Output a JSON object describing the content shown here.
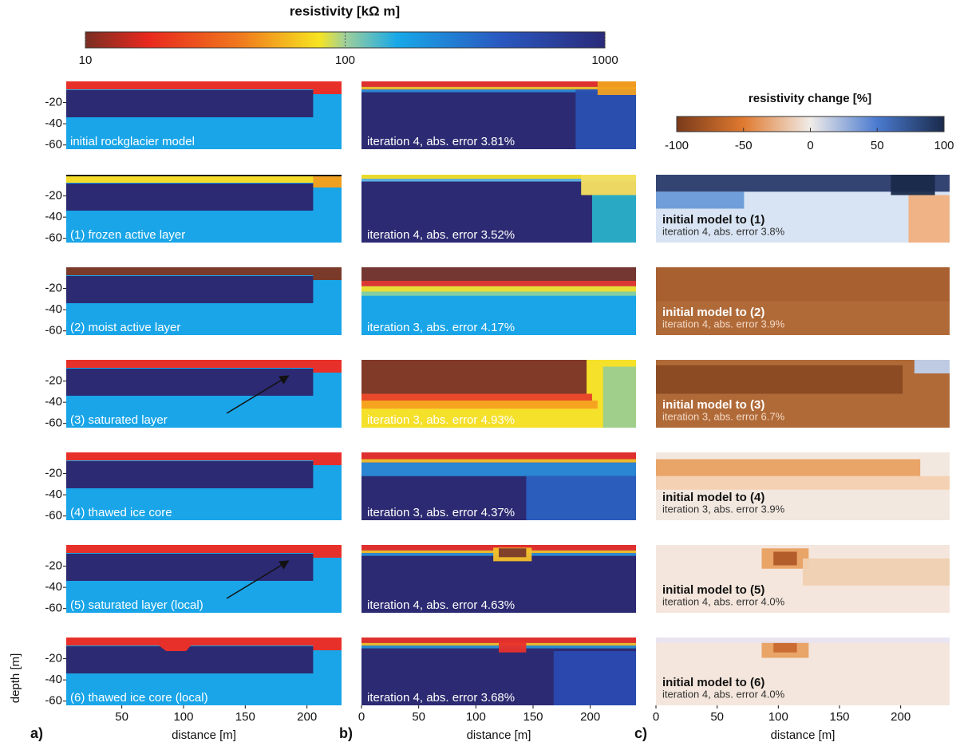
{
  "colorbar_resistivity": {
    "title": "resistivity [kΩ m]",
    "ticks": [
      10,
      100,
      1000
    ],
    "lim": [
      10,
      1000
    ],
    "log": true
  },
  "colorbar_change": {
    "title": "resistivity change [%]",
    "ticks": [
      -100,
      -50,
      0,
      50,
      100
    ],
    "lim": [
      -100,
      100
    ]
  },
  "depth_axis": {
    "label": "depth [m]",
    "ticks": [
      -20,
      -40,
      -60
    ],
    "lim": [
      0,
      -64
    ]
  },
  "distance_axis_a": {
    "label": "distance [m]",
    "ticks": [
      50,
      100,
      150,
      200
    ],
    "lim": [
      5,
      228
    ]
  },
  "distance_axis_b": {
    "label": "distance [m]",
    "ticks": [
      0,
      50,
      100,
      150,
      200
    ],
    "lim": [
      0,
      240
    ]
  },
  "distance_axis_c": {
    "label": "distance [m]",
    "ticks": [
      0,
      50,
      100,
      150,
      200
    ],
    "lim": [
      0,
      240
    ]
  },
  "panel_letters": [
    "a)",
    "b)",
    "c)"
  ],
  "rows": [
    {
      "model": "initial rockglacier model",
      "inversion": "iteration 4, abs. error 3.81%"
    },
    {
      "model": "(1) frozen active layer",
      "inversion": "iteration 4, abs. error 3.52%",
      "change_title": "initial model to (1)",
      "change_subtitle": "iteration 4, abs. error 3.8%"
    },
    {
      "model": "(2) moist active layer",
      "inversion": "iteration 3, abs. error 4.17%",
      "change_title": "initial model to (2)",
      "change_subtitle": "iteration 4, abs. error 3.9%"
    },
    {
      "model": "(3) saturated layer",
      "inversion": "iteration 3, abs. error 4.93%",
      "change_title": "initial model to (3)",
      "change_subtitle": "iteration 3, abs. error 6.7%"
    },
    {
      "model": "(4) thawed ice core",
      "inversion": "iteration 3, abs. error 4.37%",
      "change_title": "initial model to (4)",
      "change_subtitle": "iteration 3, abs. error 3.9%"
    },
    {
      "model": "(5) saturated layer (local)",
      "inversion": "iteration 4, abs. error 4.63%",
      "change_title": "initial model to (5)",
      "change_subtitle": "iteration 4, abs. error 4.0%"
    },
    {
      "model": "(6) thawed ice core (local)",
      "inversion": "iteration 4, abs. error 3.68%",
      "change_title": "initial model to (6)",
      "change_subtitle": "iteration 4, abs. error 4.0%"
    }
  ]
}
